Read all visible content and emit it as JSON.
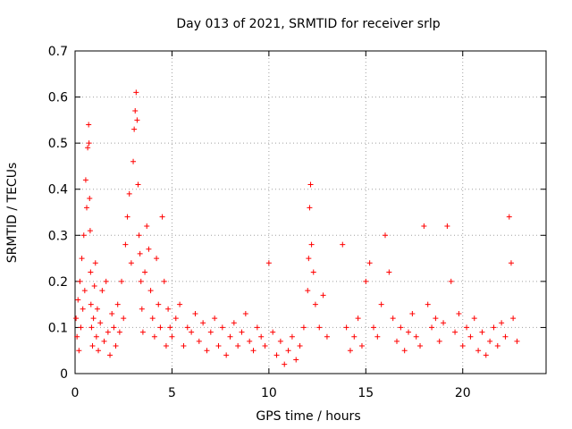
{
  "chart_data": {
    "type": "scatter",
    "title": "Day 013 of 2021, SRMTID for receiver srlp",
    "xlabel": "GPS time / hours",
    "ylabel": "SRMTID / TECUs",
    "xlim": [
      0,
      24.3
    ],
    "ylim": [
      0,
      0.7
    ],
    "xticks": [
      0,
      5,
      10,
      15,
      20
    ],
    "yticks": [
      0,
      0.1,
      0.2,
      0.3,
      0.4,
      0.5,
      0.6,
      0.7
    ],
    "grid": true,
    "marker": "+",
    "color": "#ff0000",
    "series": [
      {
        "name": "SRMTID",
        "x": [
          0.05,
          0.1,
          0.15,
          0.2,
          0.25,
          0.3,
          0.35,
          0.4,
          0.45,
          0.5,
          0.55,
          0.6,
          0.65,
          0.7,
          0.72,
          0.75,
          0.78,
          0.8,
          0.82,
          0.85,
          0.9,
          0.95,
          1.0,
          1.05,
          1.1,
          1.15,
          1.2,
          1.3,
          1.4,
          1.5,
          1.6,
          1.7,
          1.8,
          1.9,
          2.0,
          2.1,
          2.2,
          2.3,
          2.4,
          2.5,
          2.6,
          2.7,
          2.8,
          2.9,
          3.0,
          3.05,
          3.1,
          3.15,
          3.2,
          3.25,
          3.3,
          3.35,
          3.4,
          3.45,
          3.5,
          3.6,
          3.7,
          3.8,
          3.9,
          4.0,
          4.1,
          4.2,
          4.3,
          4.4,
          4.5,
          4.6,
          4.7,
          4.8,
          4.9,
          5.0,
          5.2,
          5.4,
          5.6,
          5.8,
          6.0,
          6.2,
          6.4,
          6.6,
          6.8,
          7.0,
          7.2,
          7.4,
          7.6,
          7.8,
          8.0,
          8.2,
          8.4,
          8.6,
          8.8,
          9.0,
          9.2,
          9.4,
          9.6,
          9.8,
          10.0,
          10.2,
          10.4,
          10.6,
          10.8,
          11.0,
          11.2,
          11.4,
          11.6,
          11.8,
          12.0,
          12.05,
          12.1,
          12.15,
          12.2,
          12.3,
          12.4,
          12.6,
          12.8,
          13.0,
          13.8,
          14.0,
          14.2,
          14.4,
          14.6,
          14.8,
          15.0,
          15.2,
          15.4,
          15.6,
          15.8,
          16.0,
          16.2,
          16.4,
          16.6,
          16.8,
          17.0,
          17.2,
          17.4,
          17.6,
          17.8,
          18.0,
          18.2,
          18.4,
          18.6,
          18.8,
          19.0,
          19.2,
          19.4,
          19.6,
          19.8,
          20.0,
          20.2,
          20.4,
          20.6,
          20.8,
          21.0,
          21.2,
          21.4,
          21.6,
          21.8,
          22.0,
          22.2,
          22.4,
          22.5,
          22.6,
          22.8
        ],
        "y": [
          0.12,
          0.08,
          0.16,
          0.05,
          0.2,
          0.1,
          0.25,
          0.14,
          0.3,
          0.18,
          0.42,
          0.36,
          0.49,
          0.54,
          0.5,
          0.38,
          0.31,
          0.22,
          0.15,
          0.1,
          0.06,
          0.12,
          0.19,
          0.24,
          0.08,
          0.14,
          0.05,
          0.11,
          0.18,
          0.07,
          0.2,
          0.09,
          0.04,
          0.13,
          0.1,
          0.06,
          0.15,
          0.09,
          0.2,
          0.12,
          0.28,
          0.34,
          0.39,
          0.24,
          0.46,
          0.53,
          0.57,
          0.61,
          0.55,
          0.41,
          0.3,
          0.26,
          0.2,
          0.14,
          0.09,
          0.22,
          0.32,
          0.27,
          0.18,
          0.12,
          0.08,
          0.25,
          0.15,
          0.1,
          0.34,
          0.2,
          0.06,
          0.14,
          0.1,
          0.08,
          0.12,
          0.15,
          0.06,
          0.1,
          0.09,
          0.13,
          0.07,
          0.11,
          0.05,
          0.09,
          0.12,
          0.06,
          0.1,
          0.04,
          0.08,
          0.11,
          0.06,
          0.09,
          0.13,
          0.07,
          0.05,
          0.1,
          0.08,
          0.06,
          0.24,
          0.09,
          0.04,
          0.07,
          0.02,
          0.05,
          0.08,
          0.03,
          0.06,
          0.1,
          0.18,
          0.25,
          0.36,
          0.41,
          0.28,
          0.22,
          0.15,
          0.1,
          0.17,
          0.08,
          0.28,
          0.1,
          0.05,
          0.08,
          0.12,
          0.06,
          0.2,
          0.24,
          0.1,
          0.08,
          0.15,
          0.3,
          0.22,
          0.12,
          0.07,
          0.1,
          0.05,
          0.09,
          0.13,
          0.08,
          0.06,
          0.32,
          0.15,
          0.1,
          0.12,
          0.07,
          0.11,
          0.32,
          0.2,
          0.09,
          0.13,
          0.06,
          0.1,
          0.08,
          0.12,
          0.05,
          0.09,
          0.04,
          0.07,
          0.1,
          0.06,
          0.11,
          0.08,
          0.34,
          0.24,
          0.12,
          0.07
        ]
      }
    ]
  }
}
